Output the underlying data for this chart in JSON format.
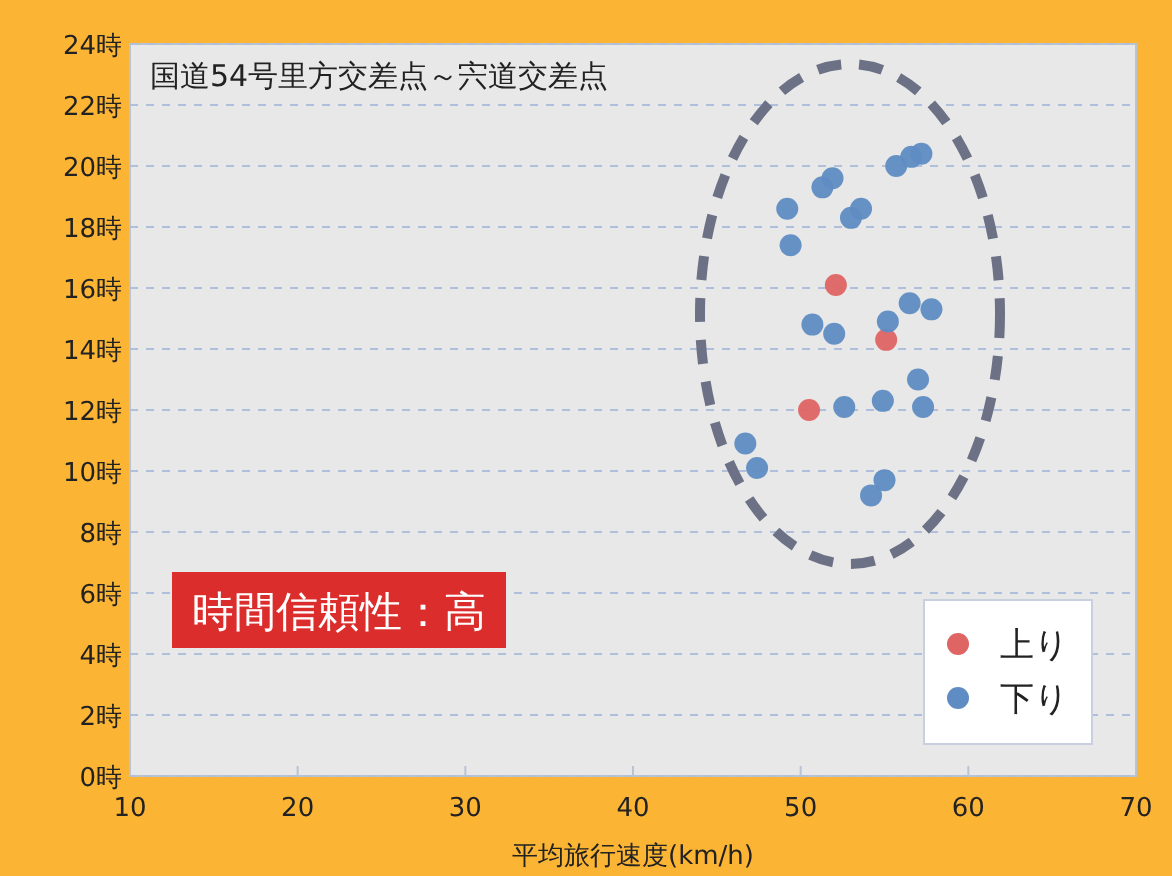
{
  "chart_data": {
    "type": "scatter",
    "title": "国道54号里方交差点～宍道交差点",
    "xlabel": "平均旅行速度(km/h)",
    "annotations": [
      "時間信頼性：高"
    ],
    "xlim": [
      10,
      70
    ],
    "xticks": [
      10,
      20,
      30,
      40,
      50,
      60,
      70
    ],
    "ylim": [
      0,
      24
    ],
    "yticks": [
      {
        "value": 0,
        "label": "0時"
      },
      {
        "value": 2,
        "label": "2時"
      },
      {
        "value": 4,
        "label": "4時"
      },
      {
        "value": 6,
        "label": "6時"
      },
      {
        "value": 8,
        "label": "8時"
      },
      {
        "value": 10,
        "label": "10時"
      },
      {
        "value": 12,
        "label": "12時"
      },
      {
        "value": 14,
        "label": "14時"
      },
      {
        "value": 16,
        "label": "16時"
      },
      {
        "value": 18,
        "label": "18時"
      },
      {
        "value": 20,
        "label": "20時"
      },
      {
        "value": 22,
        "label": "22時"
      },
      {
        "value": 24,
        "label": "24時"
      }
    ],
    "grid": "y",
    "legend": "bottom right",
    "marker": "circle",
    "series": [
      {
        "name": "上り",
        "color": "#df6464",
        "x": [
          52.1,
          55.1,
          50.5
        ],
        "values": [
          16.1,
          14.3,
          12.0
        ]
      },
      {
        "name": "下り",
        "color": "#5f8cc2",
        "x": [
          49.2,
          49.4,
          51.3,
          51.9,
          53.0,
          53.6,
          55.7,
          56.6,
          57.2,
          50.7,
          52.0,
          55.2,
          56.5,
          57.8,
          52.6,
          54.9,
          57.0,
          57.3,
          46.7,
          47.4,
          55.0,
          54.2
        ],
        "values": [
          18.6,
          17.4,
          19.3,
          19.6,
          18.3,
          18.6,
          20.0,
          20.3,
          20.4,
          14.8,
          14.5,
          14.9,
          15.5,
          15.3,
          12.1,
          12.3,
          13.0,
          12.1,
          10.9,
          10.1,
          9.7,
          9.2
        ]
      }
    ]
  }
}
